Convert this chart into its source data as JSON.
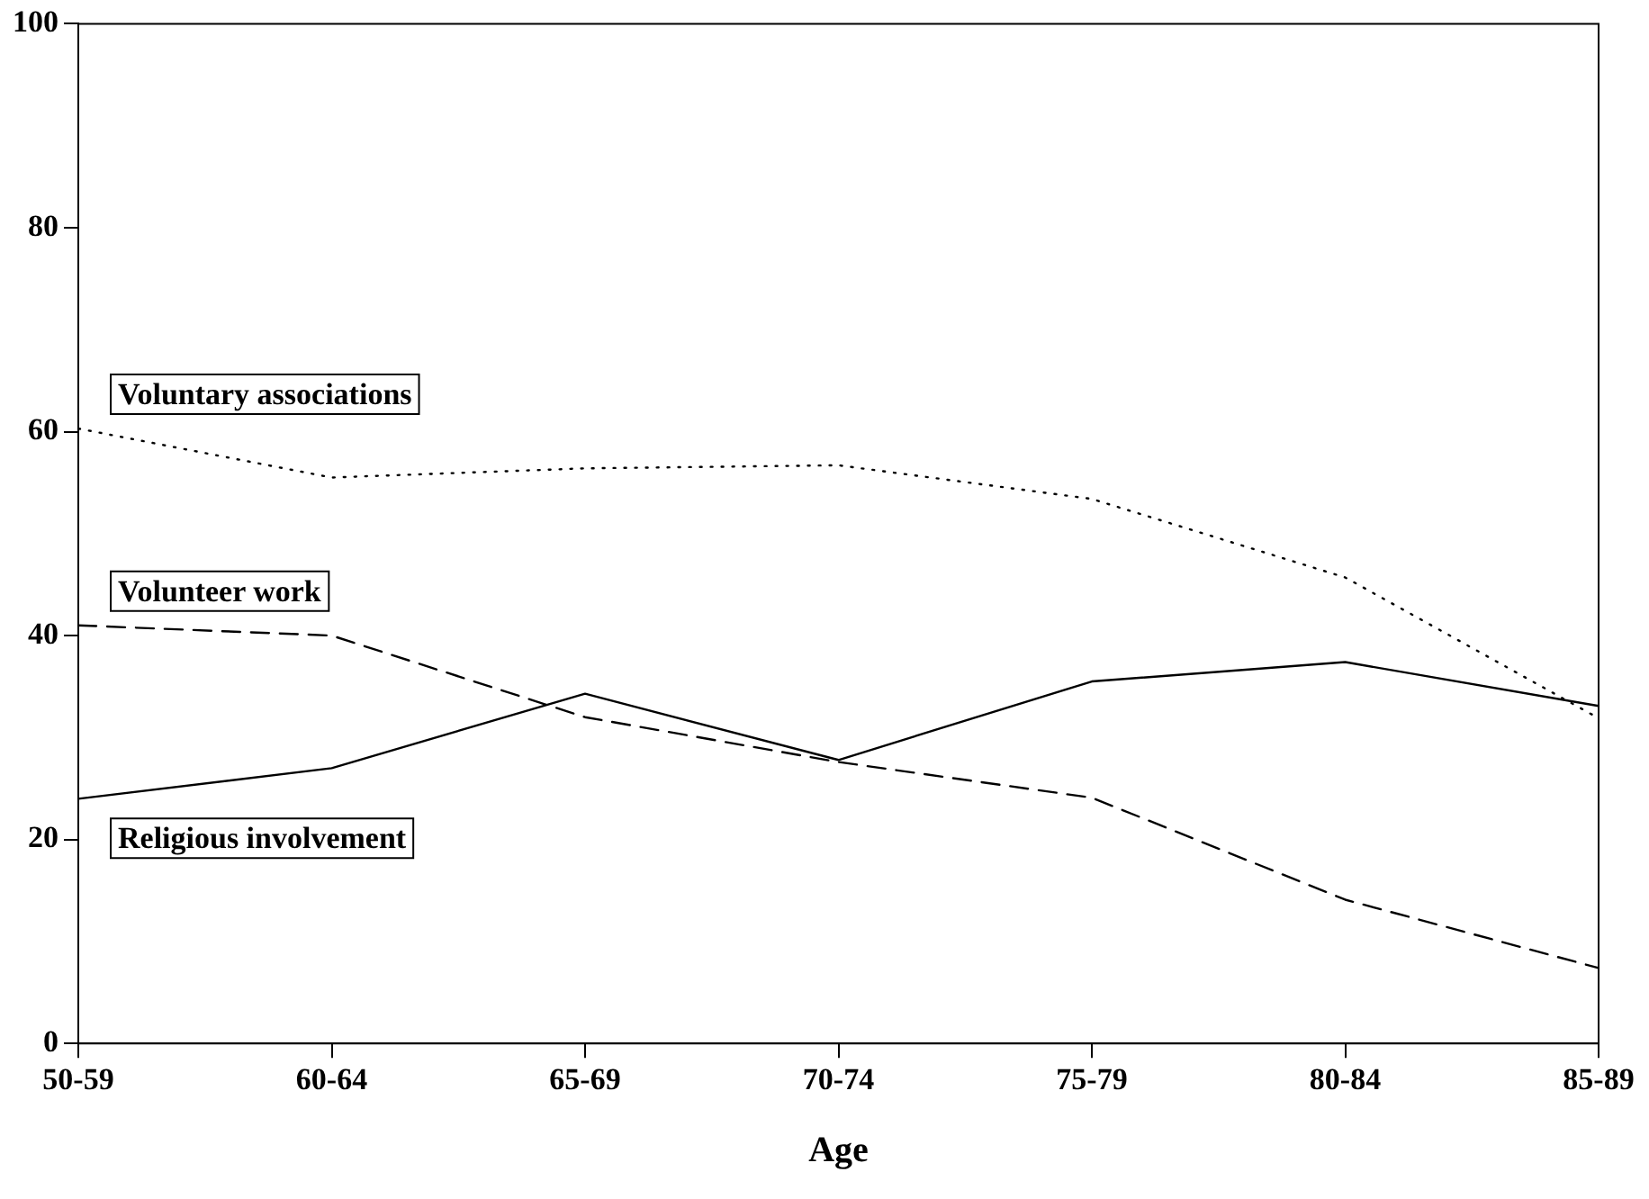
{
  "chart_data": {
    "type": "line",
    "xlabel": "Age",
    "categories": [
      "50-59",
      "60-64",
      "65-69",
      "70-74",
      "75-79",
      "80-84",
      "85-89"
    ],
    "ylim": [
      0,
      100
    ],
    "yticks": [
      0,
      20,
      40,
      60,
      80,
      100
    ],
    "grid": false,
    "legend": false,
    "marker": "none",
    "series": [
      {
        "name": "Voluntary associations",
        "color": "#000000",
        "line_style": "dotted",
        "values": [
          60.3,
          55.5,
          56.4,
          56.7,
          53.4,
          45.7,
          31.9
        ]
      },
      {
        "name": "Volunteer work",
        "color": "#000000",
        "line_style": "dashed",
        "values": [
          41,
          40,
          32,
          27.6,
          24.1,
          14.1,
          7.4
        ]
      },
      {
        "name": "Religious involvement",
        "color": "#000000",
        "line_style": "solid",
        "values": [
          24,
          27,
          34.3,
          27.8,
          35.5,
          37.4,
          33.1
        ]
      }
    ]
  }
}
